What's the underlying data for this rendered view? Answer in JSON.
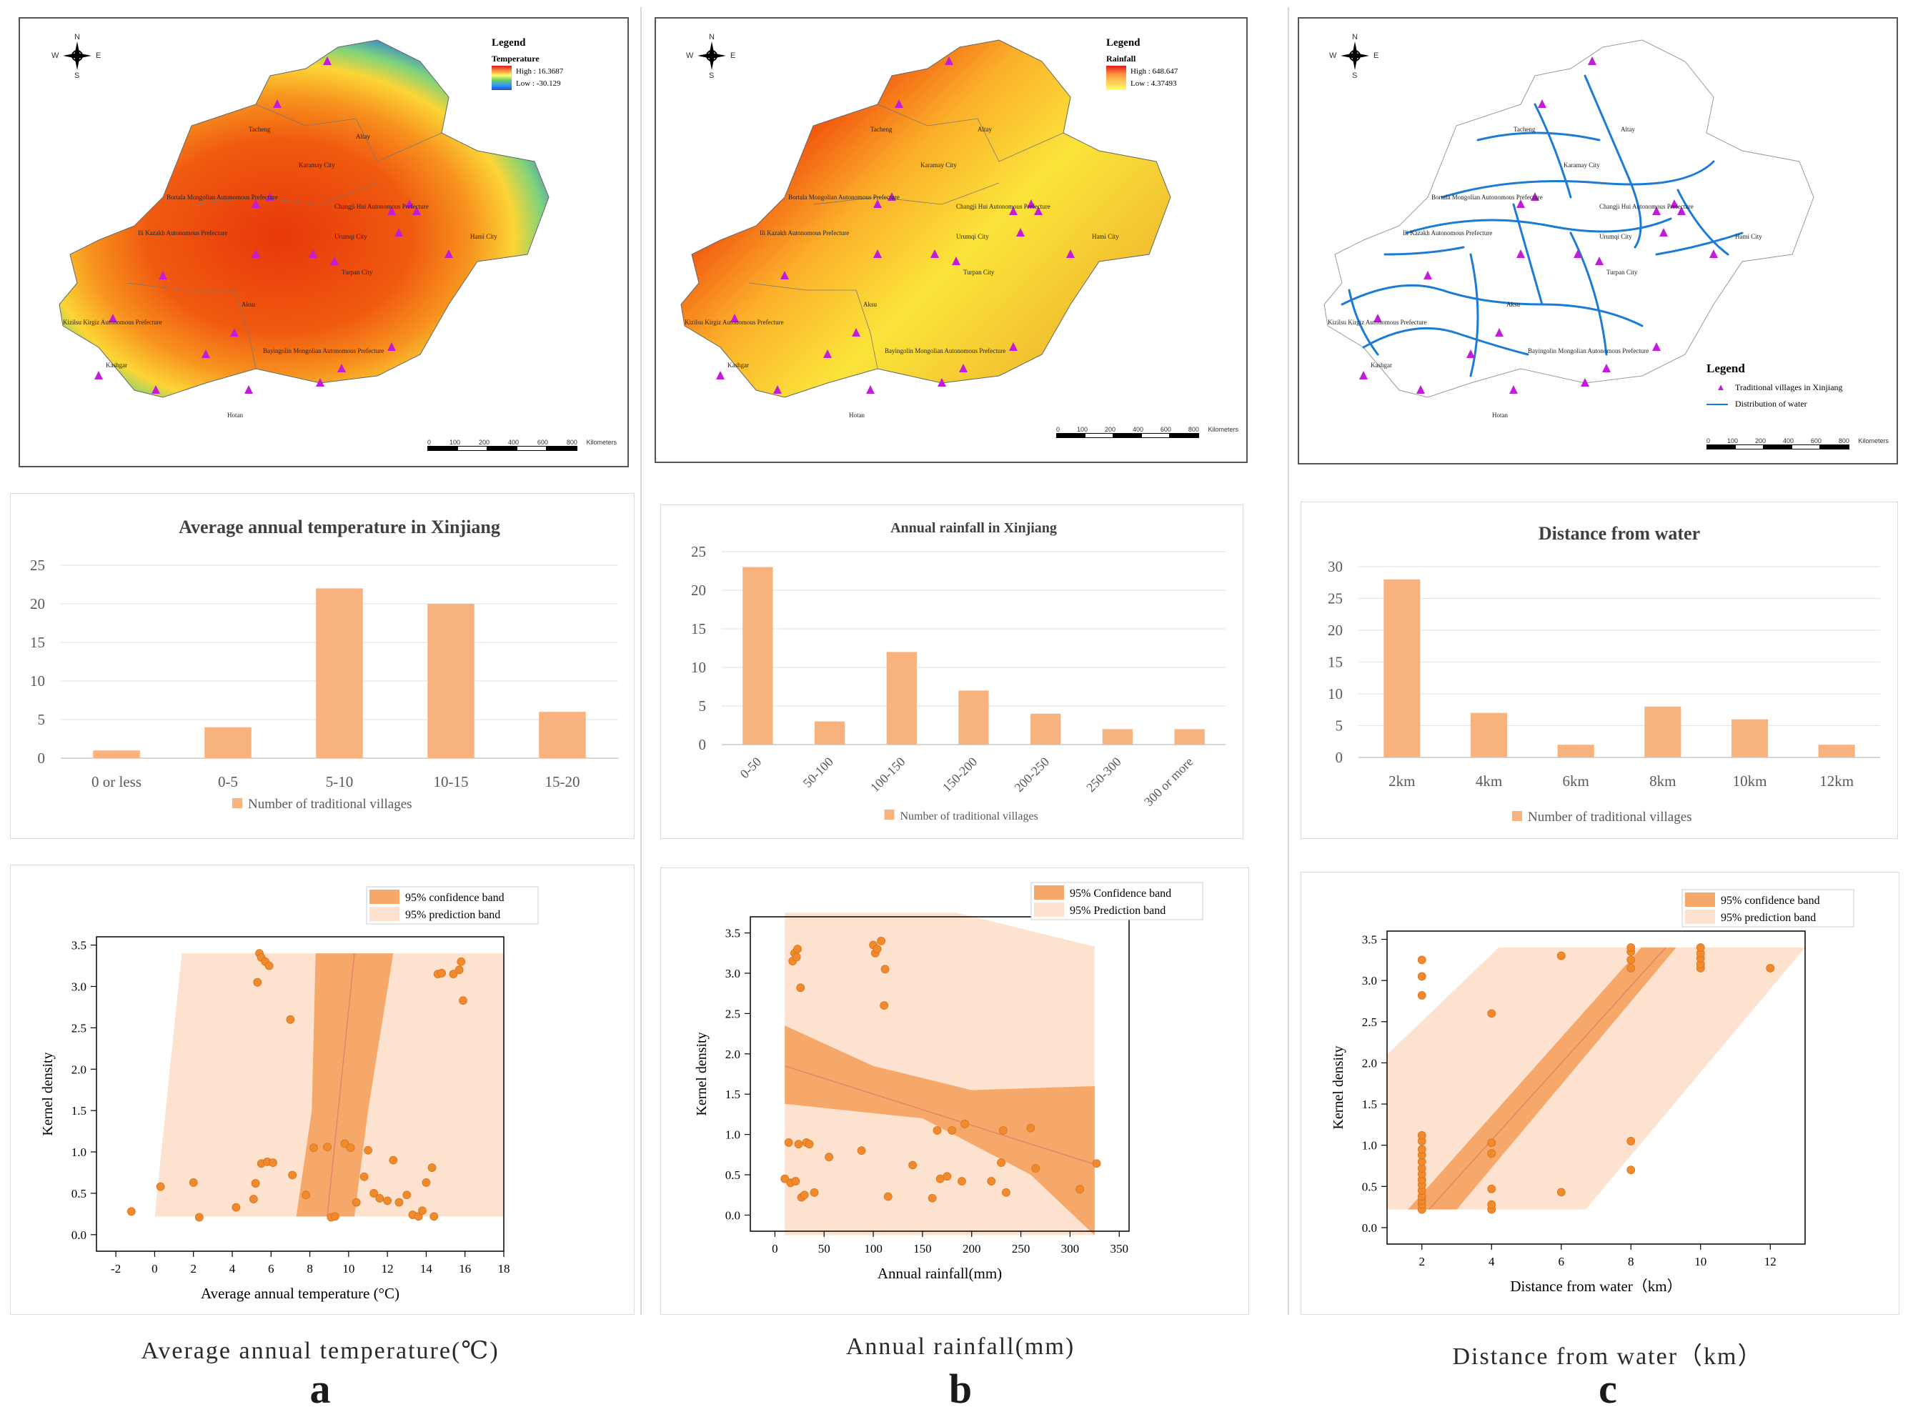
{
  "panels": [
    {
      "id": "a",
      "map": {
        "legend_title": "Legend",
        "legend_sub": "Temperature",
        "high_label": "High : 16.3687",
        "low_label": "Low : -30.129",
        "ramp_colors": [
          "#d7191c",
          "#fd8d3c",
          "#ffff66",
          "#66cc66",
          "#3399ff",
          "#1f4fcc"
        ],
        "scale_ticks": [
          "0",
          "100",
          "200",
          "400",
          "600",
          "800"
        ],
        "scale_unit": "Kilometers",
        "compass": {
          "n": "N",
          "s": "S",
          "e": "E",
          "w": "W"
        },
        "places": [
          "Altay",
          "Tacheng",
          "Karamay City",
          "Bortala Mongolian Autonomous Prefecture",
          "Changji Hui Autonomous Prefecture",
          "Ili Kazakh Autonomous Prefecture",
          "Urumqi City",
          "Hami City",
          "Turpan City",
          "Aksu",
          "Kizilsu Kirgiz Autonomous Prefecture",
          "Kashgar",
          "Bayingolin Mongolian Autonomous Prefecture",
          "Hotan"
        ]
      },
      "bar_chart": {
        "type": "bar",
        "title": "Average annual temperature in Xinjiang",
        "categories": [
          "0 or less",
          "0-5",
          "5-10",
          "10-15",
          "15-20"
        ],
        "values": [
          1,
          4,
          22,
          20,
          6
        ],
        "ylim": [
          0,
          25
        ],
        "yticks": [
          0,
          5,
          10,
          15,
          20,
          25
        ],
        "legend": "Number of traditional villages",
        "rotate_labels": false
      },
      "scatter_chart": {
        "type": "scatter",
        "xlabel": "Average annual temperature (°C)",
        "ylabel": "Kernel density",
        "xlim": [
          -3,
          18
        ],
        "ylim": [
          -0.2,
          3.6
        ],
        "xticks": [
          -2,
          0,
          2,
          4,
          6,
          8,
          10,
          12,
          14,
          16,
          18
        ],
        "yticks": [
          0.0,
          0.5,
          1.0,
          1.5,
          2.0,
          2.5,
          3.0,
          3.5
        ],
        "legend": [
          "95% confidence band",
          "95% prediction band"
        ],
        "fit_line": [
          [
            8.9,
            0.22
          ],
          [
            10.3,
            3.4
          ]
        ],
        "confidence_band": [
          [
            7.3,
            0.22
          ],
          [
            8.1,
            1.5
          ],
          [
            8.3,
            3.4
          ],
          [
            12.3,
            3.4
          ],
          [
            11.0,
            1.5
          ],
          [
            10.3,
            0.22
          ]
        ],
        "prediction_band": [
          [
            0,
            0.22
          ],
          [
            1.4,
            3.4
          ],
          [
            18,
            3.4
          ],
          [
            18,
            0.22
          ]
        ],
        "points": [
          [
            -1.2,
            0.28
          ],
          [
            0.3,
            0.58
          ],
          [
            2.0,
            0.63
          ],
          [
            2.3,
            0.21
          ],
          [
            4.2,
            0.33
          ],
          [
            5.1,
            0.43
          ],
          [
            5.2,
            0.62
          ],
          [
            5.5,
            0.86
          ],
          [
            5.8,
            0.88
          ],
          [
            6.1,
            0.87
          ],
          [
            7.1,
            0.72
          ],
          [
            7.8,
            0.48
          ],
          [
            8.2,
            1.05
          ],
          [
            8.9,
            1.06
          ],
          [
            9.1,
            0.21
          ],
          [
            9.3,
            0.22
          ],
          [
            9.8,
            1.1
          ],
          [
            10.1,
            1.05
          ],
          [
            10.4,
            0.39
          ],
          [
            10.8,
            0.7
          ],
          [
            11.0,
            1.02
          ],
          [
            11.3,
            0.5
          ],
          [
            11.6,
            0.44
          ],
          [
            12.0,
            0.41
          ],
          [
            12.3,
            0.9
          ],
          [
            12.6,
            0.39
          ],
          [
            13.0,
            0.48
          ],
          [
            13.3,
            0.24
          ],
          [
            13.6,
            0.22
          ],
          [
            13.8,
            0.29
          ],
          [
            14.0,
            0.63
          ],
          [
            14.3,
            0.81
          ],
          [
            14.4,
            0.22
          ],
          [
            14.6,
            3.15
          ],
          [
            14.8,
            3.16
          ],
          [
            15.4,
            3.15
          ],
          [
            15.7,
            3.2
          ],
          [
            15.8,
            3.3
          ],
          [
            5.3,
            3.05
          ],
          [
            5.4,
            3.4
          ],
          [
            5.5,
            3.35
          ],
          [
            5.7,
            3.3
          ],
          [
            5.9,
            3.25
          ],
          [
            7.0,
            2.6
          ],
          [
            15.9,
            2.83
          ]
        ]
      },
      "caption": "Average annual temperature(℃)",
      "letter": "a"
    },
    {
      "id": "b",
      "map": {
        "legend_title": "Legend",
        "legend_sub": "Rainfall",
        "high_label": "High : 648.647",
        "low_label": "Low : 4.37493",
        "ramp_colors": [
          "#e31a1c",
          "#fd8d3c",
          "#fecc5c",
          "#ffff66"
        ],
        "scale_ticks": [
          "0",
          "100",
          "200",
          "400",
          "600",
          "800"
        ],
        "scale_unit": "Kilometers",
        "compass": {
          "n": "N",
          "s": "S",
          "e": "E",
          "w": "W"
        },
        "places": [
          "Altay",
          "Tacheng",
          "Karamay City",
          "Bortala Mongolian Autonomous Prefecture",
          "Changji Hui Autonomous Prefecture",
          "Ili Kazakh Autonomous Prefecture",
          "Urumqi City",
          "Hami City",
          "Turpan City",
          "Aksu",
          "Kizilsu Kirgiz Autonomous Prefecture",
          "Kashgar",
          "Bayingolin Mongolian Autonomous Prefecture",
          "Hotan"
        ]
      },
      "bar_chart": {
        "type": "bar",
        "title": "Annual rainfall in Xinjiang",
        "categories": [
          "0-50",
          "50-100",
          "100-150",
          "150-200",
          "200-250",
          "250-300",
          "300 or more"
        ],
        "values": [
          23,
          3,
          12,
          7,
          4,
          2,
          2
        ],
        "ylim": [
          0,
          25
        ],
        "yticks": [
          0,
          5,
          10,
          15,
          20,
          25
        ],
        "legend": "Number of traditional villages",
        "rotate_labels": true
      },
      "scatter_chart": {
        "type": "scatter",
        "xlabel": "Annual rainfall(mm)",
        "ylabel": "Kernel density",
        "xlim": [
          -25,
          360
        ],
        "ylim": [
          -0.2,
          3.7
        ],
        "xticks": [
          0,
          50,
          100,
          150,
          200,
          250,
          300,
          350
        ],
        "yticks": [
          0.0,
          0.5,
          1.0,
          1.5,
          2.0,
          2.5,
          3.0,
          3.5
        ],
        "legend": [
          "95% Confidence band",
          "95% Prediction band"
        ],
        "fit_line": [
          [
            10,
            1.85
          ],
          [
            325,
            0.63
          ]
        ],
        "confidence_band": [
          [
            10,
            2.35
          ],
          [
            100,
            1.85
          ],
          [
            200,
            1.55
          ],
          [
            325,
            1.6
          ],
          [
            325,
            -0.25
          ],
          [
            260,
            0.5
          ],
          [
            150,
            1.2
          ],
          [
            10,
            1.38
          ]
        ],
        "prediction_band": [
          [
            10,
            3.75
          ],
          [
            185,
            3.75
          ],
          [
            325,
            3.33
          ],
          [
            325,
            -0.25
          ],
          [
            10,
            -0.25
          ]
        ],
        "points": [
          [
            10,
            0.45
          ],
          [
            14,
            0.9
          ],
          [
            16,
            0.4
          ],
          [
            18,
            3.15
          ],
          [
            20,
            3.25
          ],
          [
            21,
            0.42
          ],
          [
            22,
            3.2
          ],
          [
            23,
            3.3
          ],
          [
            24,
            0.88
          ],
          [
            26,
            2.82
          ],
          [
            27,
            0.22
          ],
          [
            30,
            0.25
          ],
          [
            32,
            0.9
          ],
          [
            35,
            0.88
          ],
          [
            40,
            0.28
          ],
          [
            55,
            0.72
          ],
          [
            88,
            0.8
          ],
          [
            100,
            3.35
          ],
          [
            102,
            3.25
          ],
          [
            104,
            3.3
          ],
          [
            108,
            3.4
          ],
          [
            111,
            2.6
          ],
          [
            112,
            3.05
          ],
          [
            115,
            0.23
          ],
          [
            140,
            0.62
          ],
          [
            160,
            0.21
          ],
          [
            165,
            1.05
          ],
          [
            168,
            0.45
          ],
          [
            175,
            0.48
          ],
          [
            180,
            1.05
          ],
          [
            190,
            0.42
          ],
          [
            193,
            1.13
          ],
          [
            220,
            0.42
          ],
          [
            230,
            0.65
          ],
          [
            232,
            1.05
          ],
          [
            235,
            0.28
          ],
          [
            260,
            1.08
          ],
          [
            265,
            0.58
          ],
          [
            310,
            0.32
          ],
          [
            327,
            0.64
          ]
        ]
      },
      "caption": "Annual rainfall(mm)",
      "letter": "b"
    },
    {
      "id": "c",
      "map": {
        "legend_title": "Legend",
        "legend_items": [
          "Traditional villages in Xinjiang",
          "Distribution of water"
        ],
        "scale_ticks": [
          "0",
          "100",
          "200",
          "400",
          "600",
          "800"
        ],
        "scale_unit": "Kilometers",
        "compass": {
          "n": "N",
          "s": "S",
          "e": "E",
          "w": "W"
        },
        "places": [
          "Altay",
          "Tacheng",
          "Karamay City",
          "Bortala Mongolian Autonomous Prefecture",
          "Changji Hui Autonomous Prefecture",
          "Ili Kazakh Autonomous Prefecture",
          "Urumqi City",
          "Hami City",
          "Turpan City",
          "Aksu",
          "Kizilsu Kirgiz Autonomous Prefecture",
          "Kashgar",
          "Bayingolin Mongolian Autonomous Prefecture",
          "Hotan"
        ]
      },
      "bar_chart": {
        "type": "bar",
        "title": "Distance from water",
        "categories": [
          "2km",
          "4km",
          "6km",
          "8km",
          "10km",
          "12km"
        ],
        "values": [
          28,
          7,
          2,
          8,
          6,
          2
        ],
        "ylim": [
          0,
          30
        ],
        "yticks": [
          0,
          5,
          10,
          15,
          20,
          25,
          30
        ],
        "legend": "Number of traditional villages",
        "rotate_labels": false
      },
      "scatter_chart": {
        "type": "scatter",
        "xlabel": "Distance from water（km）",
        "ylabel": "Kernel density",
        "xlim": [
          1,
          13
        ],
        "ylim": [
          -0.2,
          3.6
        ],
        "xticks": [
          2,
          4,
          6,
          8,
          10,
          12
        ],
        "yticks": [
          0.0,
          0.5,
          1.0,
          1.5,
          2.0,
          2.5,
          3.0,
          3.5
        ],
        "legend": [
          "95% confidence band",
          "95% prediction band"
        ],
        "fit_line": [
          [
            2.2,
            0.22
          ],
          [
            9.0,
            3.4
          ]
        ],
        "confidence_band": [
          [
            1.6,
            0.22
          ],
          [
            8.3,
            3.4
          ],
          [
            9.3,
            3.4
          ],
          [
            3.0,
            0.22
          ]
        ],
        "prediction_band": [
          [
            1,
            0.22
          ],
          [
            1,
            2.1
          ],
          [
            4.2,
            3.4
          ],
          [
            13,
            3.4
          ],
          [
            6.7,
            0.22
          ]
        ],
        "points": [
          [
            2,
            0.22
          ],
          [
            2,
            0.28
          ],
          [
            2,
            0.33
          ],
          [
            2,
            0.38
          ],
          [
            2,
            0.45
          ],
          [
            2,
            0.52
          ],
          [
            2,
            0.58
          ],
          [
            2,
            0.65
          ],
          [
            2,
            0.72
          ],
          [
            2,
            0.8
          ],
          [
            2,
            0.88
          ],
          [
            2,
            0.95
          ],
          [
            2,
            1.05
          ],
          [
            2,
            1.12
          ],
          [
            2,
            2.82
          ],
          [
            2,
            3.05
          ],
          [
            2,
            3.25
          ],
          [
            4,
            0.22
          ],
          [
            4,
            0.28
          ],
          [
            4,
            0.47
          ],
          [
            4,
            0.9
          ],
          [
            4,
            1.03
          ],
          [
            4,
            2.6
          ],
          [
            6,
            0.43
          ],
          [
            6,
            3.3
          ],
          [
            8,
            0.7
          ],
          [
            8,
            1.05
          ],
          [
            8,
            3.15
          ],
          [
            8,
            3.25
          ],
          [
            8,
            3.35
          ],
          [
            8,
            3.4
          ],
          [
            10,
            3.15
          ],
          [
            10,
            3.2
          ],
          [
            10,
            3.27
          ],
          [
            10,
            3.33
          ],
          [
            10,
            3.4
          ],
          [
            12,
            3.15
          ]
        ]
      },
      "caption": "Distance from water（km）",
      "letter": "c"
    }
  ],
  "colors": {
    "bar": "#f8b27e",
    "point": "#f08a2c",
    "confidence": "#f5a86a",
    "prediction": "#fde3cf",
    "fit_line": "#e8826a",
    "village": "#c21bd9",
    "water": "#1b7bd6"
  }
}
